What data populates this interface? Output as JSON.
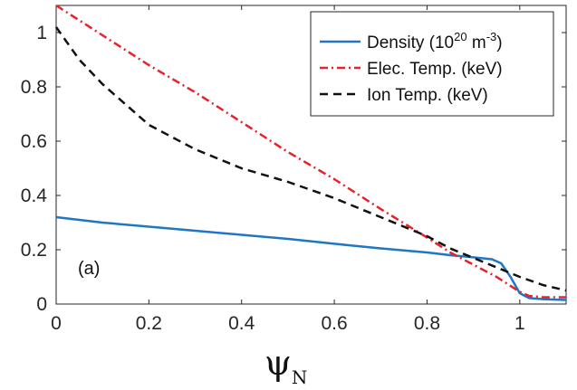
{
  "chart_data": {
    "type": "line",
    "xlabel": "ψ",
    "xlabel_sub": "N",
    "ylabel": "",
    "xlim": [
      0,
      1.1
    ],
    "ylim": [
      0,
      1.1
    ],
    "xticks": [
      "0",
      "0.2",
      "0.4",
      "0.6",
      "0.8",
      "1"
    ],
    "yticks": [
      "0",
      "0.2",
      "0.4",
      "0.6",
      "0.8",
      "1"
    ],
    "xtick_values": [
      0,
      0.2,
      0.4,
      0.6,
      0.8,
      1.0
    ],
    "ytick_values": [
      0,
      0.2,
      0.4,
      0.6,
      0.8,
      1.0
    ],
    "annotation": "(a)",
    "legend_position": "top-right",
    "legend": {
      "density_pre": "Density (10",
      "density_sup1": "20",
      "density_mid": " m",
      "density_sup2": "-3",
      "density_post": ")",
      "elec": "Elec. Temp. (keV)",
      "ion": "Ion Temp. (keV)"
    },
    "series": [
      {
        "name": "Density (10^20 m^-3)",
        "color": "#1f77c4",
        "style": "solid",
        "x": [
          0,
          0.1,
          0.2,
          0.3,
          0.4,
          0.5,
          0.6,
          0.7,
          0.8,
          0.85,
          0.9,
          0.94,
          0.96,
          0.98,
          1.0,
          1.02,
          1.05,
          1.1
        ],
        "y": [
          0.32,
          0.3,
          0.285,
          0.27,
          0.255,
          0.24,
          0.222,
          0.205,
          0.19,
          0.18,
          0.172,
          0.165,
          0.15,
          0.1,
          0.04,
          0.022,
          0.018,
          0.015
        ]
      },
      {
        "name": "Elec. Temp. (keV)",
        "color": "#e8212a",
        "style": "dashdot",
        "x": [
          0,
          0.1,
          0.2,
          0.3,
          0.4,
          0.5,
          0.6,
          0.7,
          0.8,
          0.85,
          0.9,
          0.95,
          1.0,
          1.02,
          1.05,
          1.1
        ],
        "y": [
          1.1,
          0.99,
          0.88,
          0.78,
          0.67,
          0.56,
          0.46,
          0.35,
          0.245,
          0.19,
          0.145,
          0.1,
          0.045,
          0.03,
          0.025,
          0.025
        ]
      },
      {
        "name": "Ion Temp. (keV)",
        "color": "#111111",
        "style": "dashed",
        "x": [
          0,
          0.05,
          0.1,
          0.2,
          0.3,
          0.4,
          0.5,
          0.6,
          0.7,
          0.8,
          0.85,
          0.9,
          0.95,
          1.0,
          1.05,
          1.1
        ],
        "y": [
          1.02,
          0.9,
          0.81,
          0.66,
          0.57,
          0.5,
          0.45,
          0.39,
          0.32,
          0.25,
          0.205,
          0.17,
          0.135,
          0.1,
          0.07,
          0.05
        ]
      }
    ]
  }
}
